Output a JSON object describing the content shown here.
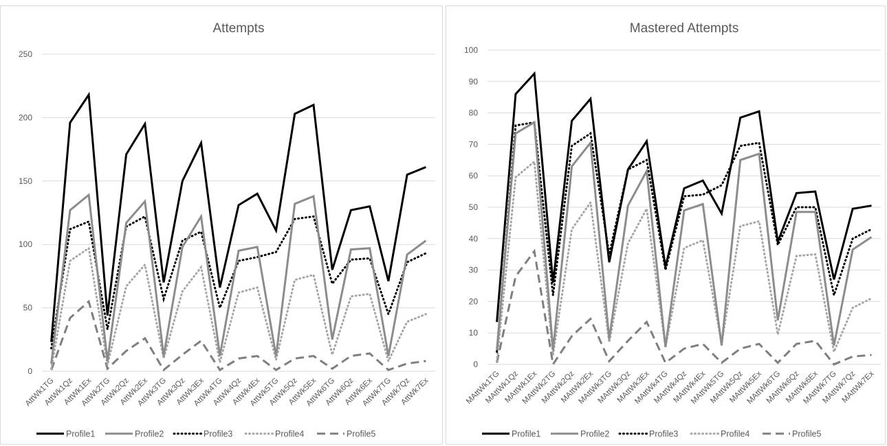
{
  "colors": {
    "profile1": "#000000",
    "profile2": "#8c8c8c",
    "profile3": "#000000",
    "profile4": "#a6a6a6",
    "profile5": "#7f7f7f"
  },
  "chart_data": [
    {
      "type": "line",
      "title": "Attempts",
      "xlabel": "",
      "ylabel": "",
      "ylim": [
        0,
        250
      ],
      "yticks": [
        "0",
        "50",
        "100",
        "150",
        "200",
        "250"
      ],
      "grid": true,
      "legend": "bottom",
      "categories": [
        "AttWk1TG",
        "AttWk1Qz",
        "AttWk1Ex",
        "AttWk2TG",
        "AttWk2Qz",
        "AttWk2Ex",
        "AttWk3TG",
        "AttWk3Qz",
        "AttWk3Ex",
        "AttWk4TG",
        "AttWk4Qz",
        "AttWk4Ex",
        "AttWk5TG",
        "AttWk5Qz",
        "AttWk5Ex",
        "AttWk6TG",
        "AttWk6Qz",
        "AttWk6Ex",
        "AttWk7TG",
        "AttWk7Qz",
        "AttWk7Ex"
      ],
      "series": [
        {
          "name": "Profile1",
          "style": "solid-black",
          "values": [
            23,
            196,
            218,
            44,
            171,
            195,
            70,
            150,
            180,
            66,
            131,
            140,
            111,
            203,
            210,
            80,
            127,
            130,
            71,
            155,
            161
          ]
        },
        {
          "name": "Profile2",
          "style": "solid-gray",
          "values": [
            6,
            127,
            139,
            8,
            117,
            134,
            12,
            98,
            122,
            12,
            95,
            98,
            12,
            132,
            138,
            25,
            96,
            97,
            12,
            92,
            103
          ]
        },
        {
          "name": "Profile3",
          "style": "dotted-black",
          "values": [
            18,
            112,
            118,
            33,
            114,
            122,
            57,
            103,
            110,
            50,
            87,
            90,
            94,
            120,
            122,
            69,
            88,
            89,
            45,
            86,
            93
          ]
        },
        {
          "name": "Profile4",
          "style": "dotted-gray",
          "values": [
            2,
            87,
            97,
            5,
            67,
            84,
            10,
            63,
            82,
            7,
            62,
            66,
            9,
            72,
            76,
            13,
            59,
            61,
            8,
            39,
            45
          ]
        },
        {
          "name": "Profile5",
          "style": "dashed-gray",
          "values": [
            1,
            42,
            55,
            2,
            16,
            26,
            1,
            13,
            24,
            1,
            10,
            12,
            1,
            10,
            12,
            2,
            12,
            14,
            1,
            6,
            8
          ]
        }
      ]
    },
    {
      "type": "line",
      "title": "Mastered Attempts",
      "xlabel": "",
      "ylabel": "",
      "ylim": [
        0,
        100
      ],
      "yticks": [
        "0",
        "10",
        "20",
        "30",
        "40",
        "50",
        "60",
        "70",
        "80",
        "90",
        "100"
      ],
      "grid": true,
      "legend": "bottom",
      "categories": [
        "MAttWk1TG",
        "MAttWk1Qz",
        "MAttWk1Ex",
        "MAttWk2TG",
        "MAttWk2Qz",
        "MAttWk2Ex",
        "MAttWk3TG",
        "MAttWk3Qz",
        "MAttWk3Ex",
        "MAttWk4TG",
        "MAttWk4Qz",
        "MAttWk4Ex",
        "MAttWk5TG",
        "MAttWk5Qz",
        "MAttWk5Ex",
        "MAttWk6TG",
        "MAttWk6Qz",
        "MAttWk6Ex",
        "MAttWk7TG",
        "MAttWk7Qz",
        "MAttWk7Ex"
      ],
      "series": [
        {
          "name": "Profile1",
          "style": "solid-black",
          "values": [
            13.5,
            86,
            92.5,
            26,
            77.5,
            84.5,
            32.5,
            62,
            71,
            31,
            56,
            58.5,
            48,
            78.5,
            80.5,
            39,
            54.5,
            55,
            27,
            49.5,
            50.5
          ]
        },
        {
          "name": "Profile2",
          "style": "solid-gray",
          "values": [
            4.5,
            73.5,
            77,
            4.5,
            63,
            70.5,
            8,
            50.5,
            61.5,
            5.5,
            49,
            51,
            6,
            65,
            67,
            14,
            48.5,
            48.5,
            6,
            36.5,
            40.5
          ]
        },
        {
          "name": "Profile3",
          "style": "dotted-black",
          "values": [
            4,
            76,
            77,
            22,
            69.5,
            73.5,
            35,
            62,
            65,
            30,
            53.5,
            54,
            57,
            69.5,
            70.5,
            38,
            50,
            50,
            22,
            40,
            43
          ]
        },
        {
          "name": "Profile4",
          "style": "dotted-gray",
          "values": [
            1,
            59.5,
            64.5,
            3,
            43,
            51.5,
            7,
            38.5,
            49.5,
            5.5,
            37,
            39.5,
            6.5,
            44,
            45.5,
            9.5,
            34.5,
            35,
            4,
            18,
            21
          ]
        },
        {
          "name": "Profile5",
          "style": "dashed-gray",
          "values": [
            0.5,
            28,
            36,
            0,
            9,
            14.5,
            1,
            7.5,
            13.5,
            0.5,
            5,
            6.5,
            0.5,
            5,
            6.5,
            0.5,
            6.5,
            7.5,
            0,
            2.5,
            3
          ]
        }
      ]
    }
  ]
}
